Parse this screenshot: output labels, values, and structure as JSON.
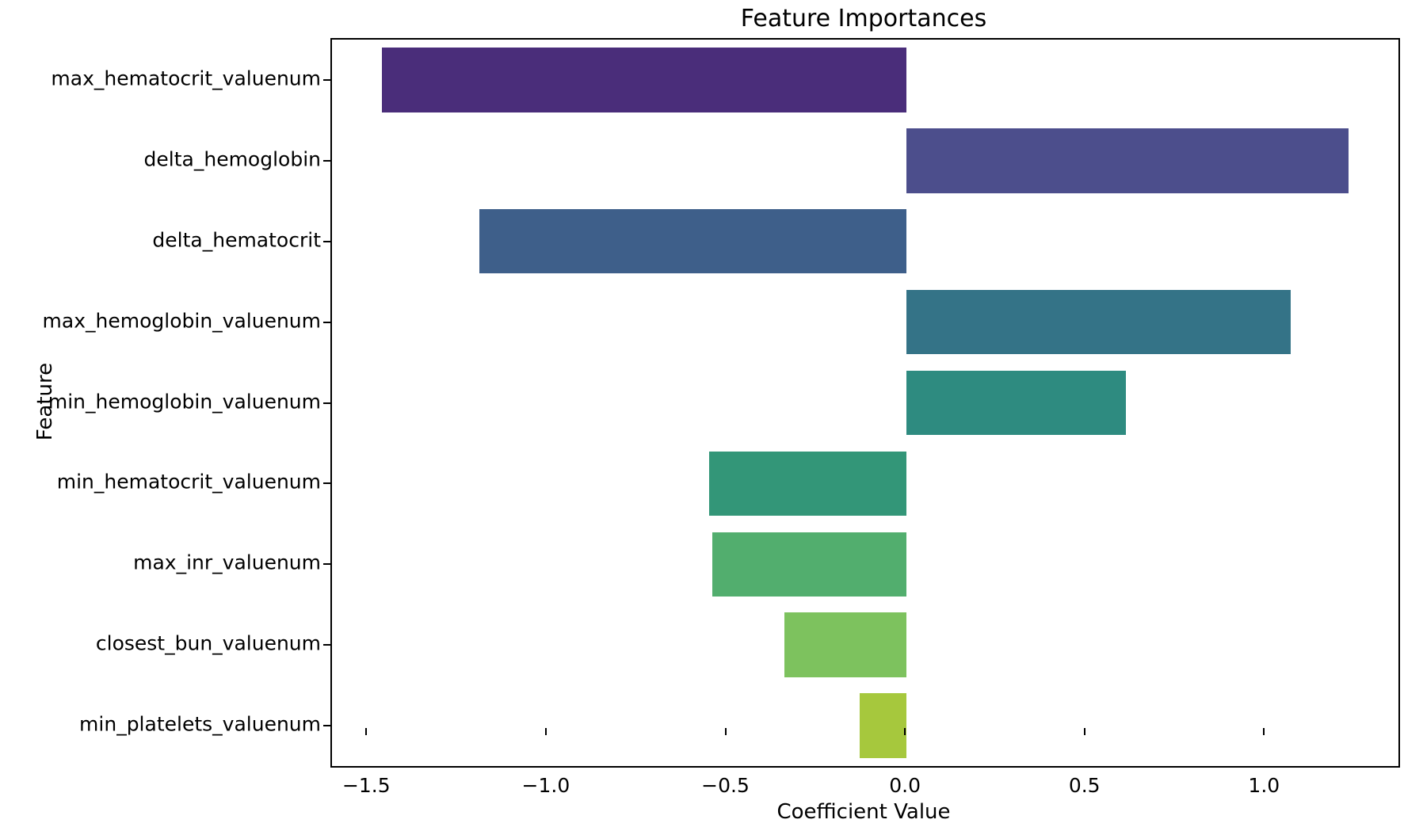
{
  "figure": {
    "background_color": "#ffffff",
    "axis_color": "#000000",
    "text_color": "#000000"
  },
  "chart_data": {
    "type": "bar",
    "orientation": "horizontal",
    "title": "Feature Importances",
    "xlabel": "Coefficient Value",
    "ylabel": "Feature",
    "categories": [
      "max_hematocrit_valuenum",
      "delta_hemoglobin",
      "delta_hematocrit",
      "max_hemoglobin_valuenum",
      "min_hemoglobin_valuenum",
      "min_hematocrit_valuenum",
      "max_inr_valuenum",
      "closest_bun_valuenum",
      "min_platelets_valuenum"
    ],
    "values": [
      -1.46,
      1.23,
      -1.19,
      1.07,
      0.61,
      -0.55,
      -0.54,
      -0.34,
      -0.13
    ],
    "bar_colors": [
      "#4a2d7a",
      "#4c4e8c",
      "#3e5f8a",
      "#347387",
      "#2e8b80",
      "#339678",
      "#52ae6e",
      "#7dc25e",
      "#a6c83d"
    ],
    "xticks": [
      -1.5,
      -1.0,
      -0.5,
      0.0,
      0.5,
      1.0
    ],
    "xlim": [
      -1.6,
      1.37
    ],
    "grid": false,
    "legend": false,
    "bar_height_fraction": 0.8
  }
}
